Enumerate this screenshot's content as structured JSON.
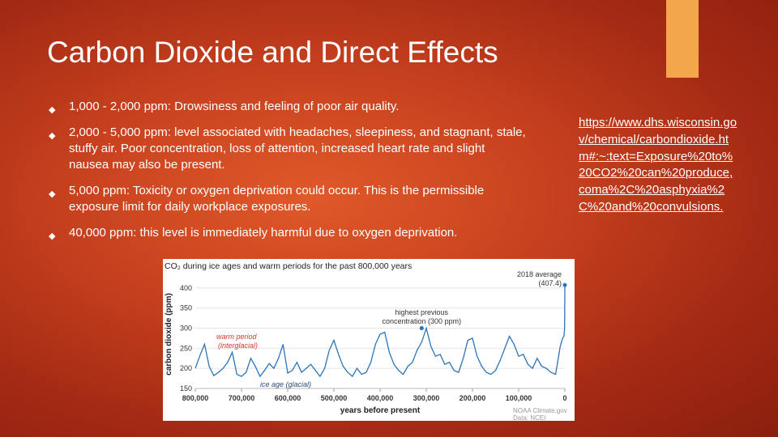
{
  "slide": {
    "title": "Carbon Dioxide and Direct Effects",
    "bullets": [
      "1,000 - 2,000 ppm: Drowsiness and feeling of poor air quality.",
      "2,000 - 5,000 ppm: level associated with headaches, sleepiness, and stagnant, stale, stuffy air. Poor concentration, loss of attention, increased heart rate and slight nausea may also be present.",
      "5,000 ppm: Toxicity or oxygen deprivation could occur. This is the permissible exposure limit for daily workplace exposures.",
      "40,000 ppm: this level is immediately harmful due to oxygen deprivation."
    ],
    "bullet_icon": "diamond-bullet-icon",
    "source_link": "https://www.dhs.wisconsin.gov/chemical/carbondioxide.htm#:~:text=Exposure%20to%20CO2%20can%20produce,coma%2C%20asphyxia%2C%20and%20convulsions.",
    "colors": {
      "accent": "#f3a64a",
      "series": "#2b74b8",
      "annotation": "#d0392b"
    }
  },
  "chart_data": {
    "type": "line",
    "title": "CO₂ during ice ages and warm periods for the past 800,000 years",
    "xlabel": "years before present",
    "ylabel": "carbon dioxide (ppm)",
    "xlim": [
      800000,
      0
    ],
    "ylim": [
      150,
      420
    ],
    "x_ticks": [
      "800,000",
      "700,000",
      "600,000",
      "500,000",
      "400,000",
      "300,000",
      "200,000",
      "100,000",
      "0"
    ],
    "y_ticks": [
      "150",
      "200",
      "250",
      "300",
      "350",
      "400"
    ],
    "annotations": {
      "average_2018": "2018 average",
      "average_2018_value": "(407.4)",
      "highest_previous": "highest previous",
      "highest_previous_2": "concentration (300 ppm)",
      "warm_period": "warm period",
      "warm_period_2": "(interglacial)",
      "ice_age": "ice age (glacial)"
    },
    "credit_1": "NOAA Climate.gov",
    "credit_2": "Data: NCEI",
    "series": [
      {
        "x": [
          800000,
          790000,
          780000,
          770000,
          760000,
          750000,
          740000,
          730000,
          720000,
          710000,
          700000,
          690000,
          680000,
          670000,
          660000,
          650000,
          640000,
          630000,
          620000,
          610000,
          600000,
          590000,
          580000,
          570000,
          560000,
          550000,
          540000,
          530000,
          520000,
          510000,
          500000,
          490000,
          480000,
          470000,
          460000,
          450000,
          440000,
          430000,
          420000,
          410000,
          400000,
          390000,
          380000,
          370000,
          360000,
          350000,
          340000,
          330000,
          320000,
          310000,
          300000,
          290000,
          280000,
          270000,
          260000,
          250000,
          240000,
          230000,
          220000,
          210000,
          200000,
          190000,
          180000,
          170000,
          160000,
          150000,
          140000,
          130000,
          120000,
          110000,
          100000,
          90000,
          80000,
          70000,
          60000,
          50000,
          40000,
          30000,
          20000,
          10000,
          5000,
          2000,
          500,
          0
        ],
        "y": [
          200,
          232,
          260,
          205,
          182,
          190,
          200,
          215,
          240,
          185,
          180,
          190,
          225,
          205,
          180,
          195,
          212,
          200,
          225,
          260,
          188,
          195,
          215,
          190,
          200,
          210,
          195,
          180,
          200,
          245,
          270,
          235,
          205,
          190,
          180,
          200,
          185,
          190,
          215,
          260,
          285,
          290,
          240,
          210,
          195,
          185,
          205,
          215,
          245,
          265,
          300,
          255,
          230,
          235,
          210,
          215,
          195,
          190,
          225,
          270,
          275,
          230,
          205,
          190,
          185,
          195,
          220,
          250,
          280,
          260,
          230,
          235,
          210,
          200,
          225,
          205,
          200,
          190,
          185,
          255,
          275,
          280,
          300,
          407.4
        ]
      }
    ]
  }
}
